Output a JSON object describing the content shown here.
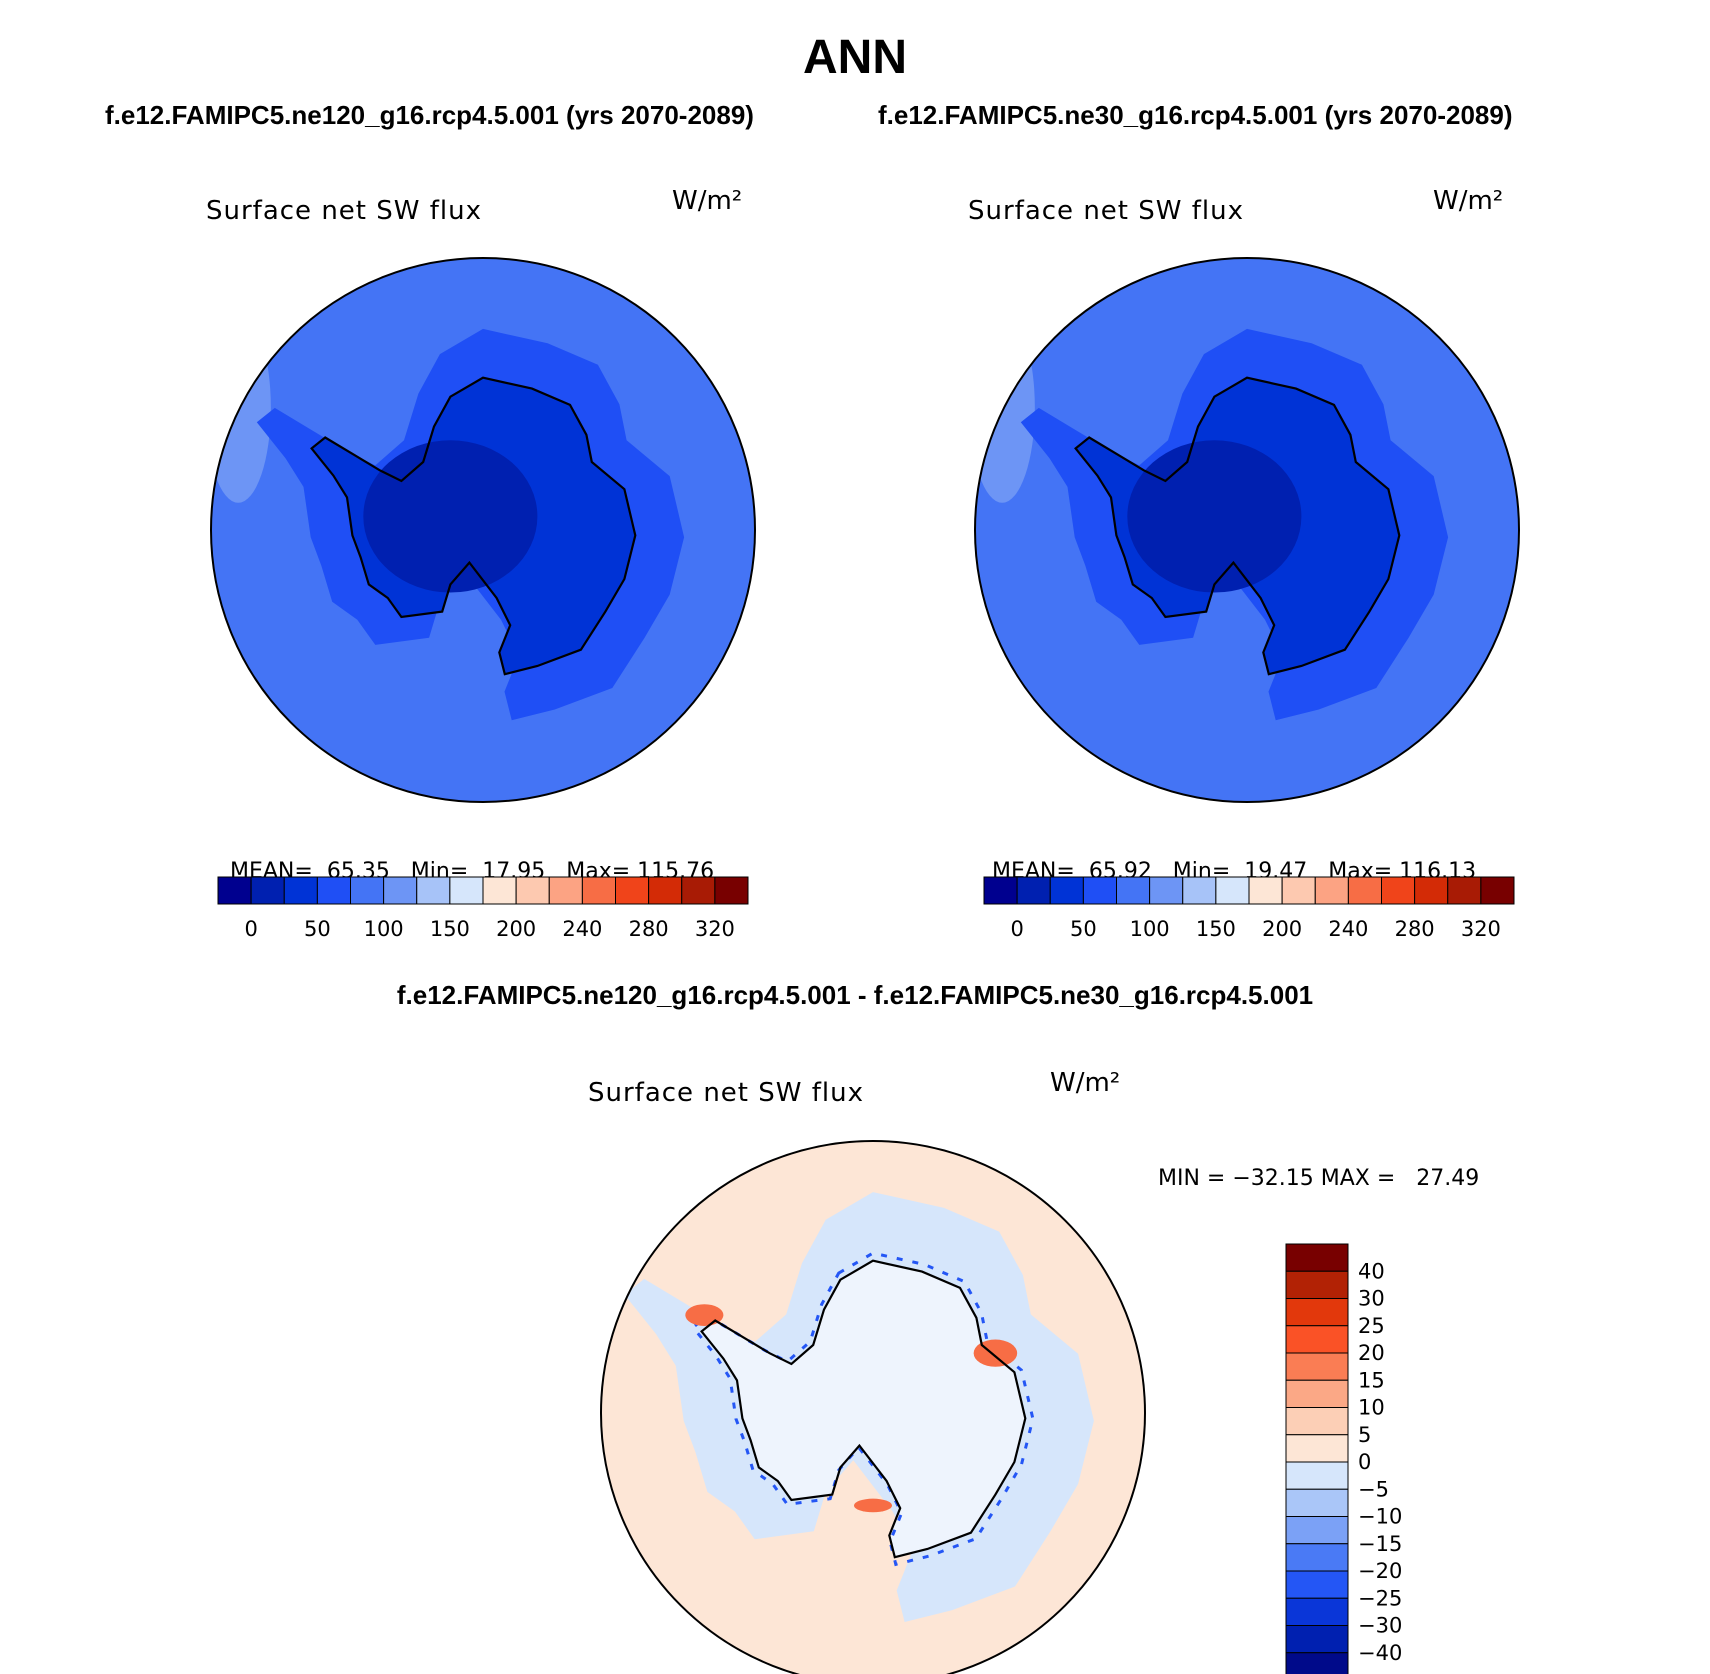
{
  "title": "ANN",
  "panels": [
    {
      "subtitle": "f.e12.FAMIPC5.ne120_g16.rcp4.5.001 (yrs 2070-2089)",
      "variable": "Surface net SW flux",
      "units": "W/m²",
      "stats": {
        "mean_label": "MEAN=",
        "mean": "65.35",
        "min_label": "Min=",
        "min": "17.95",
        "max_label": "Max=",
        "max": "115.76"
      }
    },
    {
      "subtitle": "f.e12.FAMIPC5.ne30_g16.rcp4.5.001 (yrs 2070-2089)",
      "variable": "Surface net SW flux",
      "units": "W/m²",
      "stats": {
        "mean_label": "MEAN=",
        "mean": "65.92",
        "min_label": "Min=",
        "min": "19.47",
        "max_label": "Max=",
        "max": "116.13"
      }
    }
  ],
  "difference": {
    "title": "f.e12.FAMIPC5.ne120_g16.rcp4.5.001 - f.e12.FAMIPC5.ne30_g16.rcp4.5.001",
    "variable": "Surface net SW flux",
    "units": "W/m²",
    "minmax_text": "MIN = −32.15 MAX =   27.49"
  },
  "colorbar_abs": {
    "labels": [
      "0",
      "50",
      "100",
      "150",
      "200",
      "240",
      "280",
      "320"
    ],
    "colors": [
      "#00008f",
      "#0020b0",
      "#0033d6",
      "#1f4ff5",
      "#4474f5",
      "#6d95f5",
      "#a7c3f8",
      "#d6e6fb",
      "#fde6d6",
      "#fdc9b0",
      "#fca383",
      "#f76d45",
      "#f0441a",
      "#d32b06",
      "#a81b05",
      "#780000"
    ]
  },
  "colorbar_diff": {
    "labels": [
      "40",
      "30",
      "25",
      "20",
      "15",
      "10",
      "5",
      "0",
      "−5",
      "−10",
      "−15",
      "−20",
      "−25",
      "−30",
      "−40"
    ],
    "colors": [
      "#780000",
      "#b22205",
      "#e2380c",
      "#fa5226",
      "#fa7d54",
      "#fba886",
      "#fccfb6",
      "#fde6d6",
      "#d6e6fb",
      "#aac6f8",
      "#7ba1f6",
      "#4a7af5",
      "#2456f5",
      "#0a36d8",
      "#0020b0",
      "#000a8a"
    ]
  },
  "map_colors": {
    "abs_ocean": "#4474f5",
    "abs_ring": "#1f4ff5",
    "abs_high": "#6d95f5",
    "abs_land": "#0033d6",
    "abs_interior": "#0020b0",
    "diff_pos": "#fde6d6",
    "diff_neg": "#d6e6fb",
    "diff_land": "#eef4fd",
    "diff_red": "#f76d45",
    "diff_blue": "#2456f5"
  }
}
